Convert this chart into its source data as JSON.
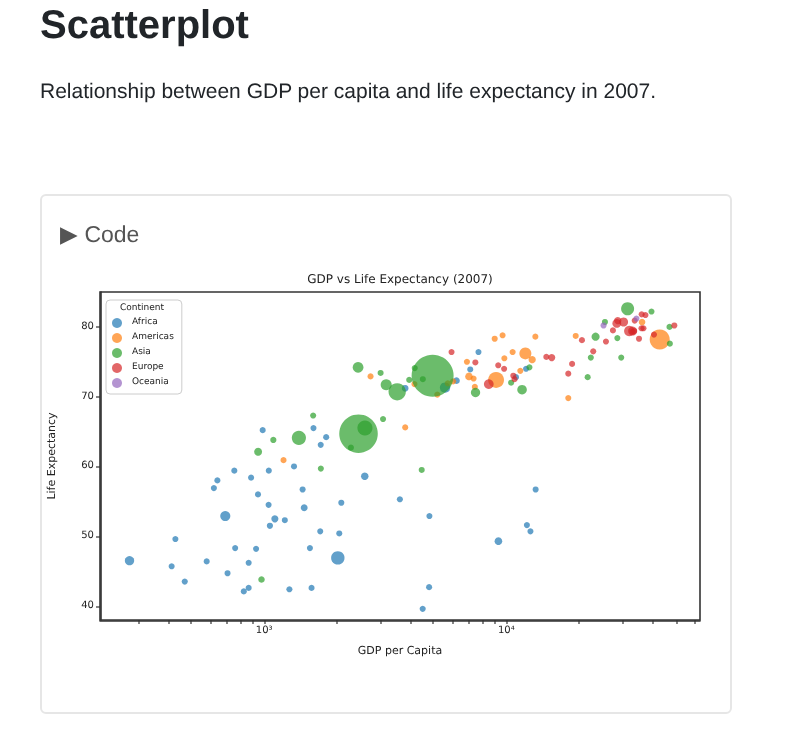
{
  "chart_data": {
    "type": "bubble",
    "title": "GDP vs Life Expectancy (2007)",
    "xlabel": "GDP per Capita",
    "ylabel": "Life Expectancy",
    "legend_title": "Continent",
    "annotations": [
      "Scatterplot",
      "Relationship between GDP per capita and life expectancy in 2007.",
      "▶ Code"
    ],
    "log": "x",
    "grid": false,
    "legend": "top left",
    "marker": "circle",
    "xlim": [
      210,
      63000
    ],
    "ylim": [
      38,
      85
    ],
    "xticks": [
      {
        "value": 300,
        "label": null
      },
      {
        "value": 400,
        "label": null
      },
      {
        "value": 500,
        "label": null
      },
      {
        "value": 600,
        "label": null
      },
      {
        "value": 700,
        "label": null
      },
      {
        "value": 800,
        "label": null
      },
      {
        "value": 900,
        "label": null
      },
      {
        "value": 1000,
        "label": "10³"
      },
      {
        "value": 2000,
        "label": null
      },
      {
        "value": 3000,
        "label": null
      },
      {
        "value": 4000,
        "label": null
      },
      {
        "value": 5000,
        "label": null
      },
      {
        "value": 6000,
        "label": null
      },
      {
        "value": 7000,
        "label": null
      },
      {
        "value": 8000,
        "label": null
      },
      {
        "value": 9000,
        "label": null
      },
      {
        "value": 10000,
        "label": "10⁴"
      },
      {
        "value": 20000,
        "label": null
      },
      {
        "value": 30000,
        "label": null
      },
      {
        "value": 40000,
        "label": null
      },
      {
        "value": 50000,
        "label": null
      },
      {
        "value": 60000,
        "label": null
      }
    ],
    "yticks": [
      40,
      50,
      60,
      70,
      80
    ],
    "series": [
      {
        "name": "Africa",
        "color": "#1f77b4",
        "x": [
          2014,
          691,
          5581,
          278,
          9270,
          2602,
          1107,
          1463,
          3820,
          6223,
          1056,
          1328,
          824,
          1045,
          1545,
          2042,
          4797,
          1217,
          759,
          620,
          1043,
          1712,
          470,
          1271,
          7093,
          1704,
          943,
          863,
          430,
          926,
          1441,
          863,
          883,
          12057,
          641,
          706,
          415,
          3633,
          1803,
          4811,
          1569,
          12570,
          13206,
          579,
          753,
          10957,
          4513,
          12154,
          2082,
          986,
          7670,
          1598
        ],
        "values": [
          46.9,
          52.9,
          71.3,
          46.5,
          49.3,
          58.6,
          52.5,
          54.1,
          71.2,
          72.3,
          51.5,
          60.0,
          42.1,
          59.4,
          48.3,
          50.4,
          42.7,
          52.3,
          48.3,
          56.9,
          54.5,
          63.1,
          43.5,
          42.4,
          73.9,
          50.7,
          56.0,
          46.2,
          49.6,
          48.2,
          56.7,
          42.6,
          58.4,
          74.0,
          58.0,
          44.7,
          45.7,
          55.3,
          64.2,
          52.9,
          42.6,
          50.7,
          56.7,
          46.4,
          59.4,
          72.8,
          39.6,
          51.6,
          54.8,
          65.2,
          76.4,
          65.5
        ],
        "sizes": [
          0.102,
          0.058,
          0.061,
          0.049,
          0.033,
          0.032,
          0.029,
          0.027,
          0.026,
          0.025,
          0.022,
          0.021,
          0.021,
          0.021,
          0.021,
          0.021,
          0.021,
          0.021,
          0.021,
          0.021,
          0.021,
          0.021,
          0.021,
          0.021,
          0.021,
          0.021,
          0.021,
          0.021,
          0.021,
          0.021,
          0.021,
          0.021,
          0.021,
          0.021,
          0.021,
          0.021,
          0.021,
          0.021,
          0.021,
          0.021,
          0.021,
          0.021,
          0.021,
          0.021,
          0.021,
          0.021,
          0.021,
          0.021,
          0.021,
          0.021,
          0.021,
          0.021
        ]
      },
      {
        "name": "Americas",
        "color": "#ff7f0e",
        "x": [
          42952,
          9066,
          11978,
          7007,
          12779,
          36319,
          7409,
          11416,
          13172,
          6873,
          5186,
          8948,
          1202,
          3822,
          6025,
          4173,
          5728,
          2749,
          9645,
          19329,
          10611,
          9809,
          7321,
          18009
        ],
        "values": [
          78.2,
          72.4,
          76.2,
          72.9,
          75.3,
          80.7,
          71.4,
          73.7,
          78.6,
          75.0,
          70.3,
          78.3,
          60.9,
          65.6,
          72.2,
          71.8,
          71.9,
          72.9,
          78.8,
          78.7,
          76.4,
          75.5,
          72.6,
          69.8
        ],
        "sizes": [
          0.228,
          0.144,
          0.082,
          0.033,
          0.03,
          0.025,
          0.021,
          0.021,
          0.021,
          0.021,
          0.021,
          0.021,
          0.021,
          0.021,
          0.021,
          0.021,
          0.021,
          0.021,
          0.021,
          0.021,
          0.021,
          0.021,
          0.021,
          0.021
        ]
      },
      {
        "name": "Asia",
        "color": "#2ca02c",
        "x": [
          4959,
          2452,
          3541,
          2606,
          1391,
          31656,
          3190,
          2442,
          11606,
          7458,
          944,
          23348,
          975,
          4471,
          1091,
          12452,
          21655,
          1593,
          2281,
          28718,
          3970,
          4185,
          1714,
          39725,
          25523,
          4519,
          10461,
          3096,
          22316,
          47307,
          47143,
          29796,
          3025
        ],
        "values": [
          73.0,
          64.7,
          70.7,
          65.5,
          64.1,
          82.6,
          71.7,
          74.2,
          71.0,
          70.6,
          62.1,
          78.6,
          43.8,
          59.5,
          63.8,
          74.2,
          72.8,
          67.3,
          62.7,
          78.4,
          72.4,
          74.1,
          59.7,
          82.2,
          80.7,
          72.5,
          72.0,
          66.8,
          75.6,
          77.6,
          80.0,
          75.6,
          73.4
        ],
        "sizes": [
          1,
          0.842,
          0.17,
          0.128,
          0.114,
          0.096,
          0.069,
          0.065,
          0.052,
          0.049,
          0.036,
          0.037,
          0.024,
          0.021,
          0.022,
          0.021,
          0.021,
          0.021,
          0.021,
          0.021,
          0.021,
          0.021,
          0.021,
          0.021,
          0.021,
          0.021,
          0.021,
          0.021,
          0.021,
          0.021,
          0.021,
          0.021,
          0.021
        ]
      },
      {
        "name": "Europe",
        "color": "#d62728",
        "x": [
          32170,
          8458,
          30470,
          33203,
          28570,
          28821,
          15390,
          10808,
          36798,
          27538,
          20510,
          33693,
          22833,
          18009,
          33860,
          9787,
          36126,
          10681,
          37506,
          35278,
          18678,
          33207,
          49357,
          14619,
          40676,
          7446,
          5937,
          25768,
          9254,
          36181
        ],
        "values": [
          79.4,
          71.8,
          80.7,
          79.4,
          80.5,
          80.9,
          75.6,
          72.5,
          79.8,
          79.5,
          78.1,
          79.4,
          76.5,
          73.3,
          80.9,
          74.0,
          79.8,
          73.0,
          81.7,
          78.3,
          74.7,
          79.3,
          80.2,
          75.7,
          78.9,
          74.9,
          76.4,
          77.9,
          74.5,
          81.8
        ],
        "sizes": [
          0.062,
          0.054,
          0.046,
          0.046,
          0.044,
          0.03,
          0.029,
          0.021,
          0.021,
          0.021,
          0.021,
          0.021,
          0.021,
          0.021,
          0.021,
          0.021,
          0.021,
          0.021,
          0.021,
          0.021,
          0.021,
          0.021,
          0.021,
          0.021,
          0.021,
          0.021,
          0.021,
          0.021,
          0.021,
          0.021
        ]
      },
      {
        "name": "Oceania",
        "color": "#9467bd",
        "x": [
          34435,
          25185
        ],
        "values": [
          81.2,
          80.2
        ],
        "sizes": [
          0.021,
          0.021
        ]
      }
    ]
  }
}
